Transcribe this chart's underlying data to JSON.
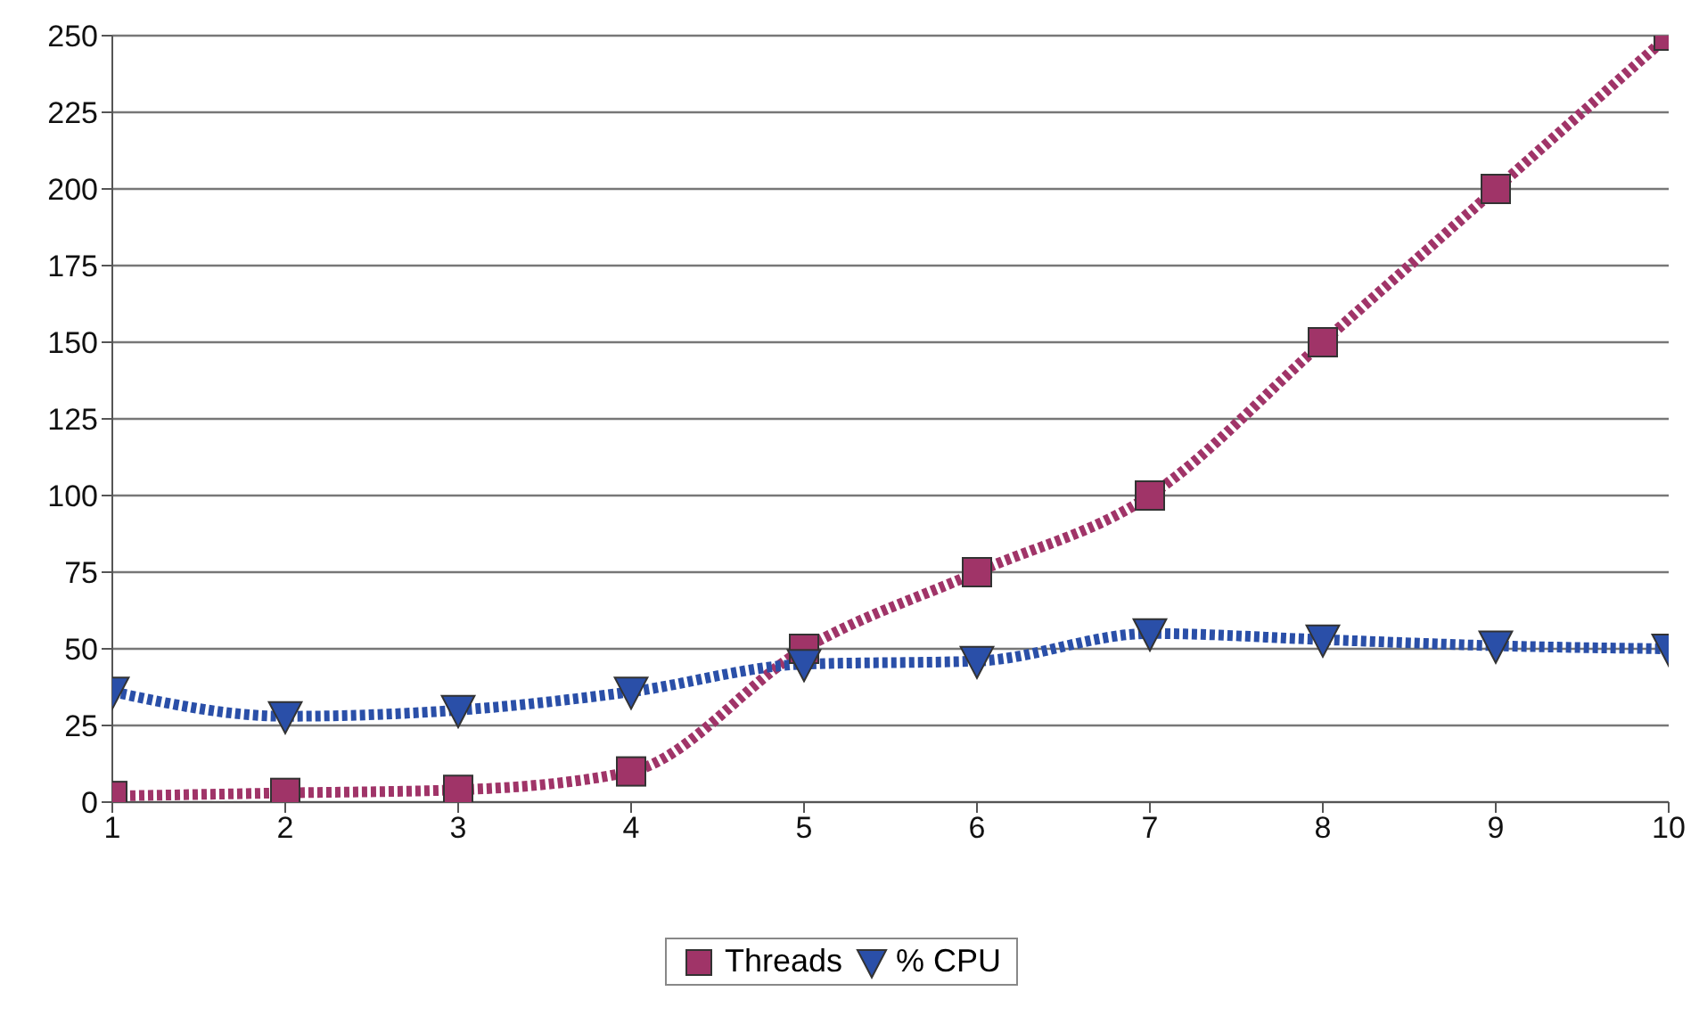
{
  "chart_data": {
    "type": "line",
    "x": [
      1,
      2,
      3,
      4,
      5,
      6,
      7,
      8,
      9,
      10
    ],
    "series": [
      {
        "name": "Threads",
        "color": "#a03468",
        "marker": "square",
        "values": [
          2,
          3,
          4,
          10,
          50,
          75,
          100,
          150,
          200,
          250
        ]
      },
      {
        "name": "% CPU",
        "color": "#2a4fa8",
        "marker": "triangle",
        "values": [
          36,
          28,
          30,
          36,
          45,
          46,
          55,
          53,
          51,
          50
        ]
      }
    ],
    "xlim": [
      1,
      10
    ],
    "xticks": [
      1,
      2,
      3,
      4,
      5,
      6,
      7,
      8,
      9,
      10
    ],
    "ylim": [
      0,
      250
    ],
    "yticks": [
      0,
      25,
      50,
      75,
      100,
      125,
      150,
      175,
      200,
      225,
      250
    ],
    "grid": "y",
    "legend": "bottom",
    "line_style": "dotted"
  }
}
